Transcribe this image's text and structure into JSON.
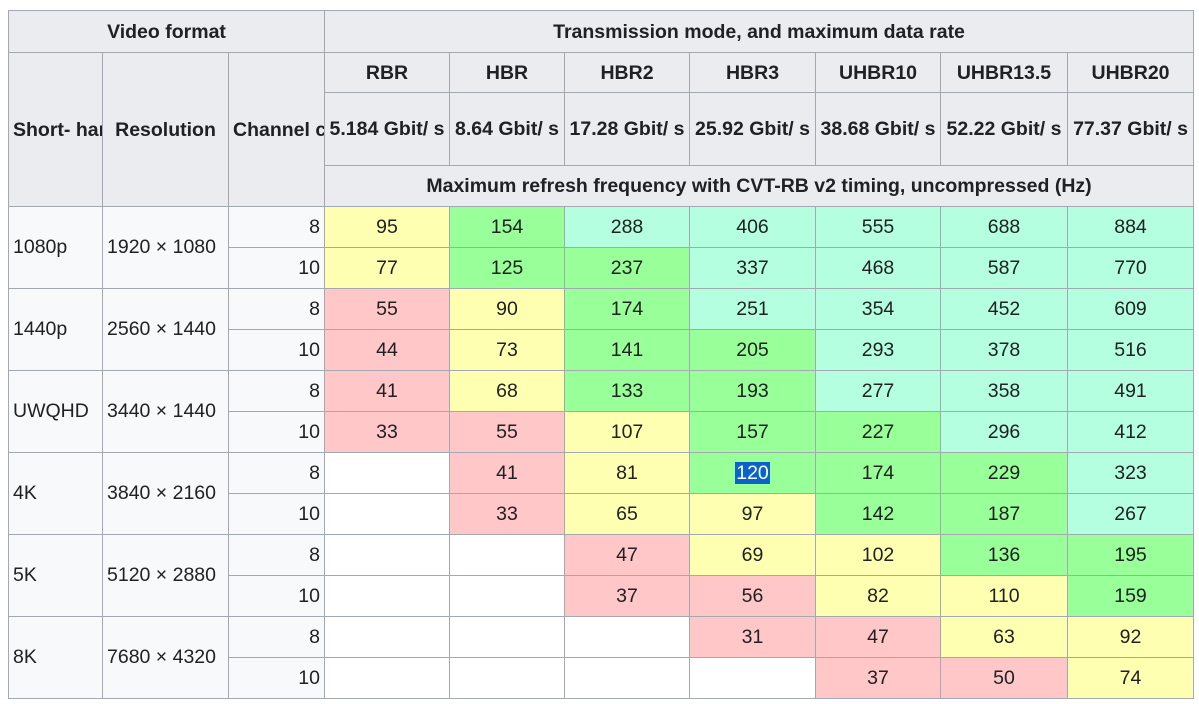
{
  "header": {
    "video_format": "Video format",
    "transmission": "Transmission mode, and maximum data rate",
    "shorthand": "Short- hand",
    "resolution": "Resolution",
    "depth": "Channel color depth (bits)",
    "subtitle": "Maximum refresh frequency with CVT-RB v2 timing, uncompressed (Hz)",
    "modes": [
      {
        "name": "RBR",
        "rate": "5.184 Gbit/ s"
      },
      {
        "name": "HBR",
        "rate": "8.64 Gbit/ s"
      },
      {
        "name": "HBR2",
        "rate": "17.28 Gbit/ s"
      },
      {
        "name": "HBR3",
        "rate": "25.92 Gbit/ s"
      },
      {
        "name": "UHBR10",
        "rate": "38.68 Gbit/ s"
      },
      {
        "name": "UHBR13.5",
        "rate": "52.22 Gbit/ s"
      },
      {
        "name": "UHBR20",
        "rate": "77.37 Gbit/ s"
      }
    ]
  },
  "colors": {
    "red": "#ffc7c7",
    "yellow": "#ffffb2",
    "green": "#99ff99",
    "mint": "#b3ffe0",
    "none": "#ffffff",
    "header_bg": "#eaecf0",
    "label_bg": "#f8f9fa",
    "selection": "#0a64c8"
  },
  "formats": [
    {
      "short": "1080p",
      "resolution": "1920 × 1080",
      "rows": [
        {
          "depth": "8",
          "values": [
            "95",
            "154",
            "288",
            "406",
            "555",
            "688",
            "884"
          ],
          "colors": [
            "yel",
            "grn",
            "mint",
            "mint",
            "mint",
            "mint",
            "mint"
          ]
        },
        {
          "depth": "10",
          "values": [
            "77",
            "125",
            "237",
            "337",
            "468",
            "587",
            "770"
          ],
          "colors": [
            "yel",
            "grn",
            "grn",
            "mint",
            "mint",
            "mint",
            "mint"
          ]
        }
      ]
    },
    {
      "short": "1440p",
      "resolution": "2560 × 1440",
      "rows": [
        {
          "depth": "8",
          "values": [
            "55",
            "90",
            "174",
            "251",
            "354",
            "452",
            "609"
          ],
          "colors": [
            "red",
            "yel",
            "grn",
            "mint",
            "mint",
            "mint",
            "mint"
          ]
        },
        {
          "depth": "10",
          "values": [
            "44",
            "73",
            "141",
            "205",
            "293",
            "378",
            "516"
          ],
          "colors": [
            "red",
            "yel",
            "grn",
            "grn",
            "mint",
            "mint",
            "mint"
          ]
        }
      ]
    },
    {
      "short": "UWQHD",
      "resolution": "3440 × 1440",
      "rows": [
        {
          "depth": "8",
          "values": [
            "41",
            "68",
            "133",
            "193",
            "277",
            "358",
            "491"
          ],
          "colors": [
            "red",
            "yel",
            "grn",
            "grn",
            "mint",
            "mint",
            "mint"
          ]
        },
        {
          "depth": "10",
          "values": [
            "33",
            "55",
            "107",
            "157",
            "227",
            "296",
            "412"
          ],
          "colors": [
            "red",
            "red",
            "yel",
            "grn",
            "grn",
            "mint",
            "mint"
          ]
        }
      ]
    },
    {
      "short": "4K",
      "resolution": "3840 × 2160",
      "rows": [
        {
          "depth": "8",
          "values": [
            "",
            "41",
            "81",
            "120",
            "174",
            "229",
            "323"
          ],
          "colors": [
            "none",
            "red",
            "yel",
            "grn",
            "grn",
            "grn",
            "mint"
          ]
        },
        {
          "depth": "10",
          "values": [
            "",
            "33",
            "65",
            "97",
            "142",
            "187",
            "267"
          ],
          "colors": [
            "none",
            "red",
            "yel",
            "yel",
            "grn",
            "grn",
            "mint"
          ]
        }
      ]
    },
    {
      "short": "5K",
      "resolution": "5120 × 2880",
      "rows": [
        {
          "depth": "8",
          "values": [
            "",
            "",
            "47",
            "69",
            "102",
            "136",
            "195"
          ],
          "colors": [
            "none",
            "none",
            "red",
            "yel",
            "yel",
            "grn",
            "grn"
          ]
        },
        {
          "depth": "10",
          "values": [
            "",
            "",
            "37",
            "56",
            "82",
            "110",
            "159"
          ],
          "colors": [
            "none",
            "none",
            "red",
            "red",
            "yel",
            "yel",
            "grn"
          ]
        }
      ]
    },
    {
      "short": "8K",
      "resolution": "7680 × 4320",
      "rows": [
        {
          "depth": "8",
          "values": [
            "",
            "",
            "",
            "31",
            "47",
            "63",
            "92"
          ],
          "colors": [
            "none",
            "none",
            "none",
            "red",
            "red",
            "yel",
            "yel"
          ]
        },
        {
          "depth": "10",
          "values": [
            "",
            "",
            "",
            "",
            "37",
            "50",
            "74"
          ],
          "colors": [
            "none",
            "none",
            "none",
            "none",
            "red",
            "red",
            "yel"
          ]
        }
      ]
    }
  ],
  "selection": {
    "format": 3,
    "row": 0,
    "col": 3
  }
}
